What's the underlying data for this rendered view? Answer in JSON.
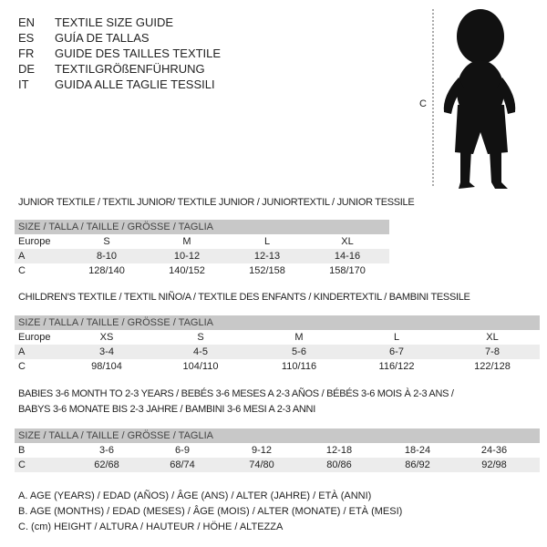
{
  "title_lines": [
    {
      "code": "EN",
      "text": "TEXTILE SIZE GUIDE"
    },
    {
      "code": "ES",
      "text": "GUÍA DE TALLAS"
    },
    {
      "code": "FR",
      "text": "GUIDE DES TAILLES TEXTILE"
    },
    {
      "code": "DE",
      "text": "TEXTILGRÖßENFÜHRUNG"
    },
    {
      "code": "IT",
      "text": "GUIDA ALLE TAGLIE TESSILI"
    }
  ],
  "figure": {
    "measure_label": "C"
  },
  "size_header": "SIZE / TALLA / TAILLE / GRÖSSE / TAGLIA",
  "junior": {
    "title": "JUNIOR TEXTILE / TEXTIL JUNIOR/ TEXTILE JUNIOR / JUNIORTEXTIL / JUNIOR TESSILE",
    "rows": [
      {
        "label": "Europe",
        "cells": [
          "S",
          "M",
          "L",
          "XL"
        ]
      },
      {
        "label": "A",
        "cells": [
          "8-10",
          "10-12",
          "12-13",
          "14-16"
        ]
      },
      {
        "label": "C",
        "cells": [
          "128/140",
          "140/152",
          "152/158",
          "158/170"
        ]
      }
    ]
  },
  "children": {
    "title": "CHILDREN'S TEXTILE / TEXTIL NIÑO/A / TEXTILE DES ENFANTS / KINDERTEXTIL / BAMBINI TESSILE",
    "rows": [
      {
        "label": "Europe",
        "cells": [
          "XS",
          "S",
          "M",
          "L",
          "XL"
        ]
      },
      {
        "label": "A",
        "cells": [
          "3-4",
          "4-5",
          "5-6",
          "6-7",
          "7-8"
        ]
      },
      {
        "label": "C",
        "cells": [
          "98/104",
          "104/110",
          "110/116",
          "116/122",
          "122/128"
        ]
      }
    ]
  },
  "babies": {
    "title_line1": "BABIES 3-6 MONTH TO 2-3 YEARS / BEBÉS 3-6 MESES A 2-3 AÑOS / BÉBÉS 3-6 MOIS À 2-3 ANS /",
    "title_line2": "BABYS 3-6 MONATE BIS 2-3 JAHRE / BAMBINI 3-6 MESI A 2-3 ANNI",
    "rows": [
      {
        "label": "B",
        "cells": [
          "3-6",
          "6-9",
          "9-12",
          "12-18",
          "18-24",
          "24-36"
        ]
      },
      {
        "label": "C",
        "cells": [
          "62/68",
          "68/74",
          "74/80",
          "80/86",
          "86/92",
          "92/98"
        ]
      }
    ]
  },
  "legend": [
    "A. AGE (YEARS) / EDAD (AÑOS) / ÂGE (ANS) / ALTER (JAHRE) / ETÀ (ANNI)",
    "B. AGE (MONTHS) / EDAD (MESES) / ÂGE (MOIS) / ALTER (MONATE) / ETÀ (MESI)",
    "C. (cm) HEIGHT / ALTURA / HAUTEUR / HÖHE / ALTEZZA"
  ]
}
